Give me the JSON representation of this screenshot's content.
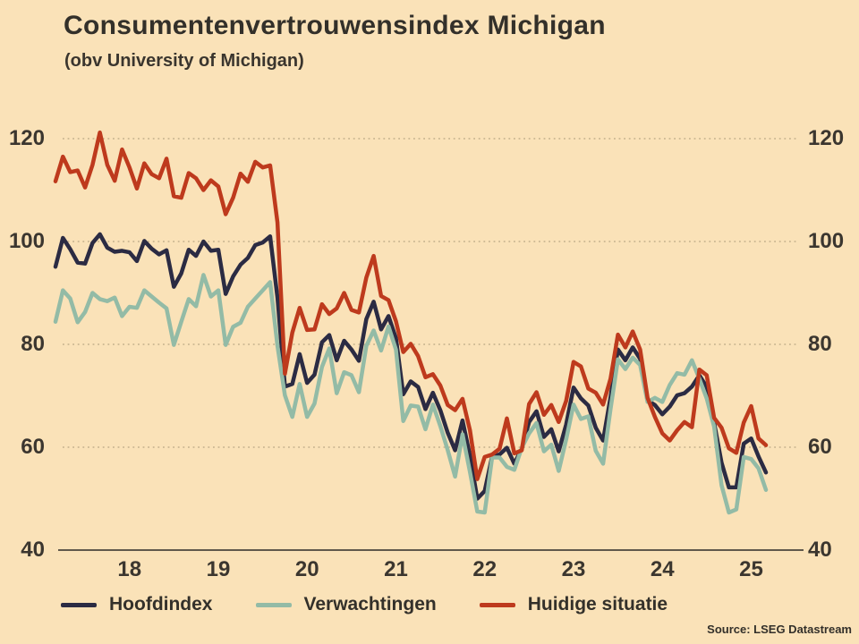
{
  "title": "Consumentenvertrouwensindex Michigan",
  "subtitle": "(obv University of Michigan)",
  "source": "Source: LSEG Datastream",
  "colors": {
    "background": "#fae2b8",
    "text": "#33302a",
    "grid": "#b7a582",
    "axis": "#4a443c",
    "hoofdindex": "#2b2b43",
    "verwachtingen": "#93bba6",
    "huidige_situatie": "#be3a1d"
  },
  "chart_data": {
    "type": "line",
    "title": "Consumentenvertrouwensindex Michigan",
    "subtitle": "(obv University of Michigan)",
    "frequency": "monthly",
    "x_start": "2017-09",
    "x_end": "2025-09",
    "x_tick_labels": [
      "18",
      "19",
      "20",
      "21",
      "22",
      "23",
      "24",
      "25"
    ],
    "y_ticks": [
      40,
      60,
      80,
      100,
      120
    ],
    "ylim": [
      40,
      125
    ],
    "grid": "dotted-horizontal",
    "legend_position": "bottom",
    "x": [
      "2017-09",
      "2017-10",
      "2017-11",
      "2017-12",
      "2018-01",
      "2018-02",
      "2018-03",
      "2018-04",
      "2018-05",
      "2018-06",
      "2018-07",
      "2018-08",
      "2018-09",
      "2018-10",
      "2018-11",
      "2018-12",
      "2019-01",
      "2019-02",
      "2019-03",
      "2019-04",
      "2019-05",
      "2019-06",
      "2019-07",
      "2019-08",
      "2019-09",
      "2019-10",
      "2019-11",
      "2019-12",
      "2020-01",
      "2020-02",
      "2020-03",
      "2020-04",
      "2020-05",
      "2020-06",
      "2020-07",
      "2020-08",
      "2020-09",
      "2020-10",
      "2020-11",
      "2020-12",
      "2021-01",
      "2021-02",
      "2021-03",
      "2021-04",
      "2021-05",
      "2021-06",
      "2021-07",
      "2021-08",
      "2021-09",
      "2021-10",
      "2021-11",
      "2021-12",
      "2022-01",
      "2022-02",
      "2022-03",
      "2022-04",
      "2022-05",
      "2022-06",
      "2022-07",
      "2022-08",
      "2022-09",
      "2022-10",
      "2022-11",
      "2022-12",
      "2023-01",
      "2023-02",
      "2023-03",
      "2023-04",
      "2023-05",
      "2023-06",
      "2023-07",
      "2023-08",
      "2023-09",
      "2023-10",
      "2023-11",
      "2023-12",
      "2024-01",
      "2024-02",
      "2024-03",
      "2024-04",
      "2024-05",
      "2024-06",
      "2024-07",
      "2024-08",
      "2024-09",
      "2024-10",
      "2024-11",
      "2024-12",
      "2025-01",
      "2025-02",
      "2025-03",
      "2025-04",
      "2025-05",
      "2025-06",
      "2025-07",
      "2025-08",
      "2025-09"
    ],
    "series": [
      {
        "name": "Hoofdindex",
        "color": "#2b2b43",
        "values": [
          95.1,
          100.7,
          98.5,
          95.9,
          95.7,
          99.7,
          101.4,
          98.8,
          98.0,
          98.2,
          97.9,
          96.2,
          100.1,
          98.6,
          97.5,
          98.3,
          91.2,
          93.8,
          98.4,
          97.2,
          100.0,
          98.2,
          98.4,
          89.8,
          93.2,
          95.5,
          96.8,
          99.3,
          99.8,
          101.0,
          89.1,
          71.8,
          72.3,
          78.1,
          72.5,
          74.1,
          80.4,
          81.8,
          76.9,
          80.7,
          79.0,
          76.8,
          84.9,
          88.3,
          82.9,
          85.5,
          81.2,
          70.3,
          72.8,
          71.7,
          67.4,
          70.6,
          67.2,
          62.8,
          59.4,
          65.2,
          58.4,
          50.0,
          51.5,
          58.2,
          58.6,
          59.9,
          56.8,
          59.7,
          64.9,
          67.0,
          62.0,
          63.5,
          59.2,
          64.4,
          71.6,
          69.5,
          68.1,
          63.8,
          61.3,
          69.7,
          79.0,
          76.9,
          79.4,
          77.2,
          69.1,
          68.2,
          66.4,
          67.9,
          70.1,
          70.5,
          71.8,
          74.0,
          71.7,
          64.7,
          57.0,
          52.2,
          52.2,
          60.7,
          61.7,
          58.2,
          55.1
        ]
      },
      {
        "name": "Verwachtingen",
        "color": "#93bba6",
        "values": [
          84.4,
          90.5,
          88.9,
          84.3,
          86.3,
          90.0,
          88.8,
          88.4,
          89.1,
          85.5,
          87.3,
          87.1,
          90.5,
          89.3,
          88.1,
          87.0,
          79.9,
          84.4,
          88.8,
          87.4,
          93.5,
          89.3,
          90.5,
          79.9,
          83.4,
          84.2,
          87.3,
          88.9,
          90.5,
          92.1,
          79.7,
          70.1,
          65.9,
          72.3,
          65.9,
          68.5,
          75.6,
          79.2,
          70.5,
          74.6,
          74.0,
          70.7,
          79.7,
          82.7,
          78.8,
          83.5,
          79.0,
          65.1,
          68.1,
          67.9,
          63.5,
          68.3,
          64.1,
          59.4,
          54.3,
          62.5,
          55.2,
          47.5,
          47.3,
          58.0,
          58.0,
          56.2,
          55.6,
          59.9,
          62.7,
          64.7,
          59.2,
          60.5,
          55.4,
          61.5,
          68.3,
          65.5,
          66.0,
          59.3,
          56.8,
          67.4,
          77.1,
          75.2,
          77.4,
          76.0,
          68.8,
          69.6,
          68.8,
          72.1,
          74.4,
          74.1,
          76.9,
          73.3,
          69.5,
          64.0,
          52.6,
          47.3,
          47.9,
          58.1,
          57.7,
          55.9,
          51.7
        ]
      },
      {
        "name": "Huidige situatie",
        "color": "#be3a1d",
        "values": [
          111.7,
          116.5,
          113.5,
          113.8,
          110.5,
          114.9,
          121.2,
          114.9,
          111.8,
          117.9,
          114.4,
          110.3,
          115.2,
          113.1,
          112.3,
          116.1,
          108.8,
          108.5,
          113.3,
          112.3,
          110.0,
          111.9,
          110.7,
          105.3,
          108.5,
          113.2,
          111.6,
          115.5,
          114.4,
          114.8,
          103.7,
          74.3,
          82.3,
          87.1,
          82.8,
          82.9,
          87.8,
          85.9,
          87.0,
          90.0,
          86.7,
          86.2,
          93.0,
          97.2,
          89.4,
          88.6,
          84.5,
          78.5,
          80.1,
          77.7,
          73.6,
          74.2,
          72.0,
          68.2,
          67.2,
          69.4,
          63.3,
          53.8,
          58.1,
          58.6,
          59.7,
          65.6,
          58.8,
          59.4,
          68.4,
          70.7,
          66.3,
          68.2,
          64.9,
          69.0,
          76.6,
          75.7,
          71.4,
          70.6,
          68.3,
          73.3,
          81.9,
          79.4,
          82.5,
          79.0,
          69.6,
          65.9,
          62.7,
          61.3,
          63.3,
          64.9,
          63.9,
          75.1,
          74.0,
          65.7,
          63.8,
          59.8,
          58.9,
          64.8,
          68.0,
          61.7,
          60.4
        ]
      }
    ]
  }
}
